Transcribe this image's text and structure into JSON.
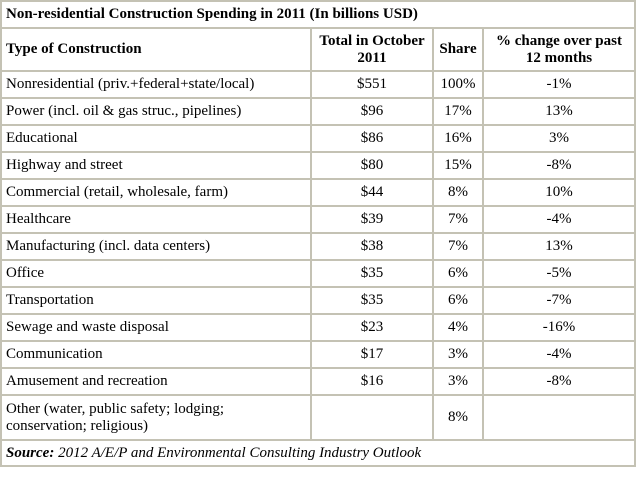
{
  "title": "Non-residential Construction Spending in 2011 (In billions USD)",
  "headers": [
    "Type of Construction",
    "Total in October 2011",
    "Share",
    "% change over past 12 months"
  ],
  "rows": [
    {
      "type": "Nonresidential (priv.+federal+state/local)",
      "total": "$551",
      "share": "100%",
      "change": "-1%"
    },
    {
      "type": "Power (incl. oil & gas struc., pipelines)",
      "total": "$96",
      "share": "17%",
      "change": "13%"
    },
    {
      "type": "Educational",
      "total": "$86",
      "share": "16%",
      "change": "3%"
    },
    {
      "type": "Highway and street",
      "total": "$80",
      "share": "15%",
      "change": "-8%"
    },
    {
      "type": "Commercial (retail, wholesale, farm)",
      "total": "$44",
      "share": "8%",
      "change": "10%"
    },
    {
      "type": "Healthcare",
      "total": "$39",
      "share": "7%",
      "change": "-4%"
    },
    {
      "type": "Manufacturing (incl. data centers)",
      "total": "$38",
      "share": "7%",
      "change": "13%"
    },
    {
      "type": "Office",
      "total": "$35",
      "share": "6%",
      "change": "-5%"
    },
    {
      "type": "Transportation",
      "total": "$35",
      "share": "6%",
      "change": "-7%"
    },
    {
      "type": "Sewage and waste disposal",
      "total": "$23",
      "share": "4%",
      "change": "-16%"
    },
    {
      "type": "Communication",
      "total": "$17",
      "share": "3%",
      "change": "-4%"
    },
    {
      "type": "Amusement and recreation",
      "total": "$16",
      "share": "3%",
      "change": "-8%"
    }
  ],
  "other": {
    "type": "Other (water, public safety; lodging; conservation; religious)",
    "total": "",
    "share": "8%",
    "change": ""
  },
  "source": {
    "label": "Source:",
    "text": "2012 A/E/P and Environmental Consulting Industry Outlook"
  }
}
